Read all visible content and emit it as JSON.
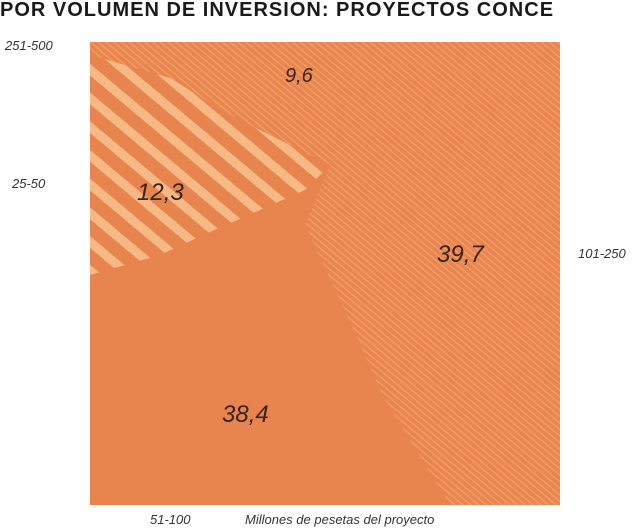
{
  "chart_data": {
    "type": "pie",
    "title": "POR VOLUMEN DE INVERSION: PROYECTOS CONCE",
    "unit_label": "Millones de pesetas del proyecto",
    "slices": [
      {
        "label": "251-500",
        "value": 9.6,
        "value_label": "9,6",
        "pattern": "fine-diagonal"
      },
      {
        "label": "25-50",
        "value": 12.3,
        "value_label": "12,3",
        "pattern": "bold-diagonal-stripes"
      },
      {
        "label": "101-250",
        "value": 39.7,
        "value_label": "39,7",
        "pattern": "fine-diagonal"
      },
      {
        "label": "51-100",
        "value": 38.4,
        "value_label": "38,4",
        "pattern": "solid"
      }
    ],
    "colors": {
      "base": "#e8844e",
      "fine_hatch": "#f19a63",
      "bold_stripe": "#f6b985",
      "label": "#3a2418"
    }
  }
}
